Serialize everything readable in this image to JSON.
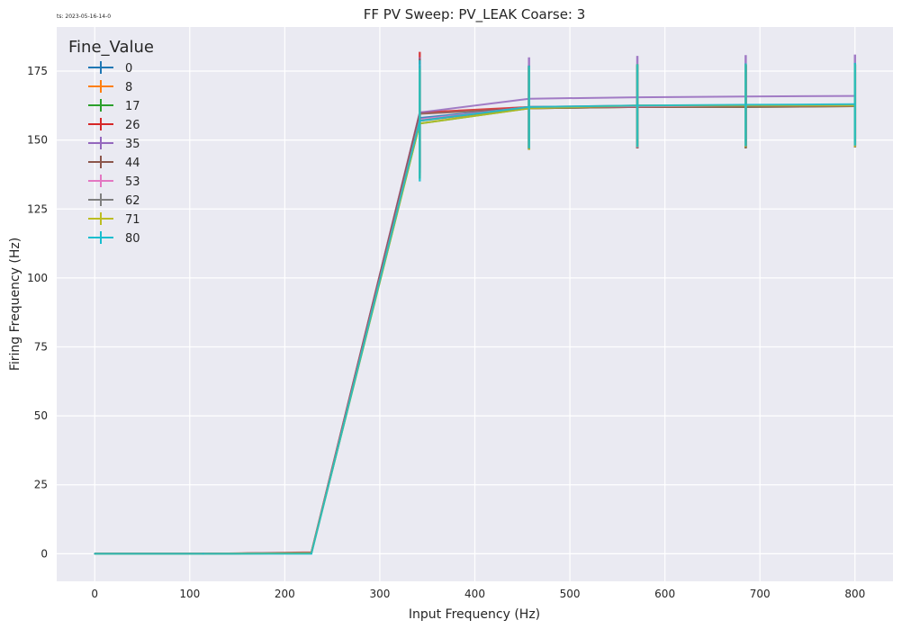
{
  "timestamp": "ts: 2023-05-16-14-0",
  "chart_data": {
    "type": "line",
    "title": "FF PV Sweep: PV_LEAK Coarse: 3",
    "xlabel": "Input Frequency (Hz)",
    "ylabel": "Firing Frequency (Hz)",
    "xlim": [
      -40,
      840
    ],
    "ylim": [
      -10,
      191
    ],
    "xticks": [
      0,
      100,
      200,
      300,
      400,
      500,
      600,
      700,
      800
    ],
    "yticks": [
      0,
      25,
      50,
      75,
      100,
      125,
      150,
      175
    ],
    "grid": true,
    "legend": {
      "title": "Fine_Value",
      "placement": "top-left"
    },
    "x": [
      0,
      114,
      228,
      342,
      457,
      571,
      685,
      800
    ],
    "series": [
      {
        "name": "0",
        "color": "#1f77b4",
        "values": [
          0,
          0,
          0.3,
          158.0,
          162.0,
          162.0,
          162.3,
          162.5
        ],
        "errors": [
          0,
          0,
          0,
          20,
          15,
          15,
          15,
          15
        ]
      },
      {
        "name": "8",
        "color": "#ff7f0e",
        "values": [
          0,
          0,
          0.3,
          157.0,
          161.5,
          162.0,
          162.2,
          162.5
        ],
        "errors": [
          0,
          0,
          0,
          20,
          15,
          15,
          15,
          15
        ]
      },
      {
        "name": "17",
        "color": "#2ca02c",
        "values": [
          0,
          0,
          0.2,
          156.0,
          161.5,
          162.0,
          162.0,
          162.3
        ],
        "errors": [
          0,
          0,
          0,
          20,
          15,
          15,
          15,
          15
        ]
      },
      {
        "name": "26",
        "color": "#d62728",
        "values": [
          0,
          0,
          0.5,
          160.0,
          162.0,
          162.0,
          162.3,
          162.5
        ],
        "errors": [
          0,
          0,
          0,
          22,
          15,
          15,
          15,
          15
        ]
      },
      {
        "name": "35",
        "color": "#9467bd",
        "values": [
          0,
          0,
          0.3,
          160.0,
          165.0,
          165.5,
          165.8,
          166.0
        ],
        "errors": [
          0,
          0,
          0,
          20,
          15,
          15,
          15,
          15
        ]
      },
      {
        "name": "44",
        "color": "#8c564b",
        "values": [
          0,
          0,
          0.3,
          159.5,
          161.5,
          162.0,
          162.0,
          162.3
        ],
        "errors": [
          0,
          0,
          0,
          20,
          15,
          15,
          15,
          15
        ]
      },
      {
        "name": "53",
        "color": "#e377c2",
        "values": [
          0,
          0,
          0.3,
          157.5,
          162.0,
          162.2,
          162.5,
          162.5
        ],
        "errors": [
          0,
          0,
          0,
          20,
          15,
          15,
          15,
          15
        ]
      },
      {
        "name": "62",
        "color": "#7f7f7f",
        "values": [
          0,
          0,
          0.3,
          157.0,
          162.0,
          162.5,
          162.5,
          162.8
        ],
        "errors": [
          0,
          0,
          0,
          20,
          15,
          15,
          15,
          15
        ]
      },
      {
        "name": "71",
        "color": "#bcbd22",
        "values": [
          0,
          0,
          0.2,
          156.0,
          161.5,
          162.5,
          162.5,
          162.5
        ],
        "errors": [
          0,
          0,
          0,
          20,
          15,
          15,
          15,
          15
        ]
      },
      {
        "name": "80",
        "color": "#17becf",
        "values": [
          0,
          0,
          0,
          157.0,
          162.0,
          162.5,
          162.8,
          163.0
        ],
        "errors": [
          0,
          0,
          0,
          22,
          15,
          15,
          15,
          15
        ]
      }
    ]
  }
}
